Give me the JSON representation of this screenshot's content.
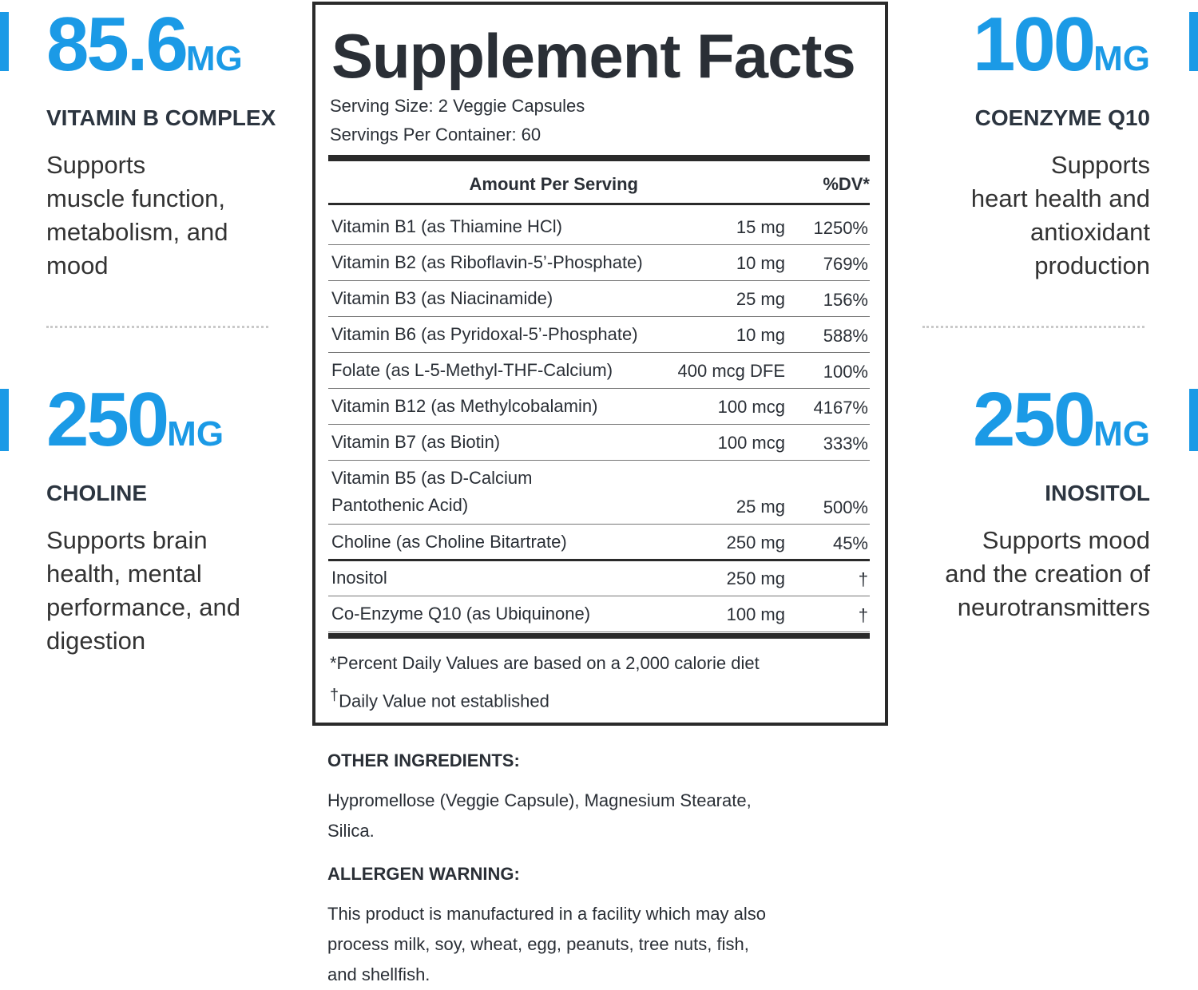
{
  "callouts": [
    {
      "amount": "85.6",
      "unit": "MG",
      "name": "VITAMIN B COMPLEX",
      "description": [
        "Supports",
        "muscle function,",
        "metabolism, and",
        "mood"
      ]
    },
    {
      "amount": "250",
      "unit": "MG",
      "name": "CHOLINE",
      "description": [
        "Supports brain",
        "health, mental",
        "performance, and",
        "digestion"
      ]
    },
    {
      "amount": "100",
      "unit": "MG",
      "name": "COENZYME Q10",
      "description": [
        "Supports",
        "heart health and",
        "antioxidant",
        "production"
      ]
    },
    {
      "amount": "250",
      "unit": "MG",
      "name": "INOSITOL",
      "description": [
        "Supports mood",
        "and the creation of",
        "neurotransmitters"
      ]
    }
  ],
  "supplement_facts": {
    "title": "Supplement Facts",
    "serving_size": "Serving Size: 2 Veggie Capsules",
    "servings_per_container": "Servings Per Container: 60",
    "header": {
      "amount": "Amount Per Serving",
      "dv": "%DV*"
    },
    "rows": [
      {
        "name": [
          "Vitamin B1 (as Thiamine HCl)"
        ],
        "amount": "15 mg",
        "dv": "1250%"
      },
      {
        "name": [
          "Vitamin B2 (as Riboflavin-5’-Phosphate)"
        ],
        "amount": "10 mg",
        "dv": "769%"
      },
      {
        "name": [
          "Vitamin B3 (as Niacinamide)"
        ],
        "amount": "25 mg",
        "dv": "156%"
      },
      {
        "name": [
          "Vitamin B6 (as Pyridoxal-5’-Phosphate)"
        ],
        "amount": "10 mg",
        "dv": "588%"
      },
      {
        "name": [
          "Folate (as L-5-Methyl-THF-Calcium)"
        ],
        "amount": "400 mcg DFE",
        "dv": "100%"
      },
      {
        "name": [
          "Vitamin B12 (as Methylcobalamin)"
        ],
        "amount": "100 mcg",
        "dv": "4167%"
      },
      {
        "name": [
          "Vitamin B7 (as Biotin)"
        ],
        "amount": "100 mcg",
        "dv": "333%"
      },
      {
        "name": [
          "Vitamin B5 (as D-Calcium",
          "Pantothenic Acid)"
        ],
        "amount": "25 mg",
        "dv": "500%"
      },
      {
        "name": [
          "Choline (as Choline Bitartrate)"
        ],
        "amount": "250 mg",
        "dv": "45%"
      },
      {
        "name": [
          "Inositol"
        ],
        "amount": "250 mg",
        "dv": "†"
      },
      {
        "name": [
          "Co-Enzyme Q10 (as Ubiquinone)"
        ],
        "amount": "100 mg",
        "dv": "†"
      }
    ],
    "footnote_dv": "*Percent Daily Values are based on a 2,000 calorie diet",
    "footnote_dagger": {
      "mark": "†",
      "text": "Daily Value not established"
    }
  },
  "other_ingredients": {
    "heading": "OTHER INGREDIENTS:",
    "lines": [
      "Hypromellose (Veggie Capsule), Magnesium Stearate,",
      "Silica."
    ]
  },
  "allergen_warning": {
    "heading": "ALLERGEN WARNING:",
    "lines": [
      "This product is manufactured in a facility which may also",
      "process milk, soy, wheat, egg, peanuts, tree nuts, fish,",
      "and shellfish."
    ]
  }
}
